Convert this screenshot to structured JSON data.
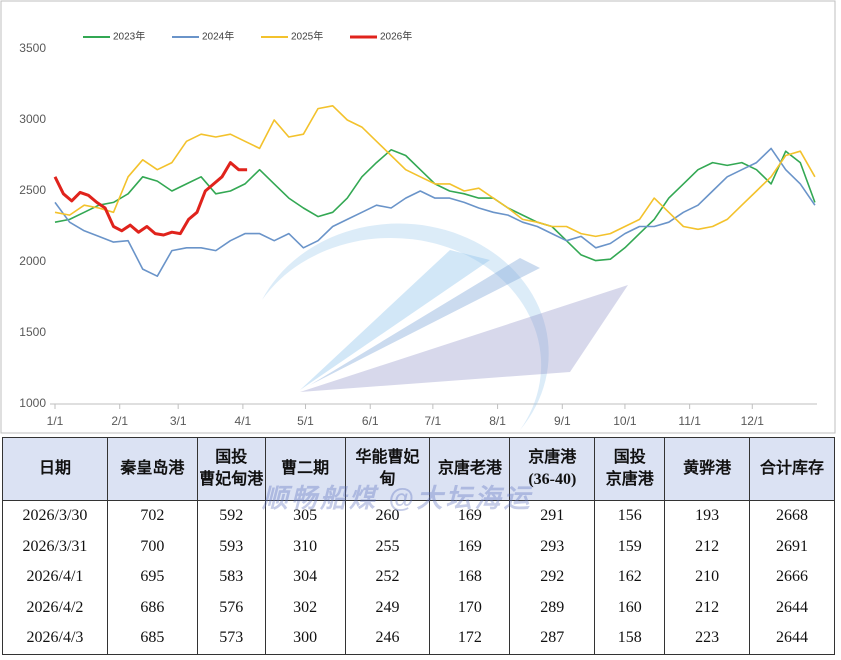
{
  "chart_data": {
    "type": "line",
    "xlim": [
      0,
      365
    ],
    "xticks": [
      {
        "value": 0,
        "label": "1/1"
      },
      {
        "value": 31,
        "label": "2/1"
      },
      {
        "value": 59,
        "label": "3/1"
      },
      {
        "value": 90,
        "label": "4/1"
      },
      {
        "value": 120,
        "label": "5/1"
      },
      {
        "value": 151,
        "label": "6/1"
      },
      {
        "value": 181,
        "label": "7/1"
      },
      {
        "value": 212,
        "label": "8/1"
      },
      {
        "value": 243,
        "label": "9/1"
      },
      {
        "value": 273,
        "label": "10/1"
      },
      {
        "value": 304,
        "label": "11/1"
      },
      {
        "value": 334,
        "label": "12/1"
      }
    ],
    "ylim": [
      1000,
      3500
    ],
    "yticks": [
      1000,
      1500,
      2000,
      2500,
      3000,
      3500
    ],
    "series": [
      {
        "name": "2023年",
        "color": "#33a853",
        "x": [
          0,
          7,
          14,
          21,
          28,
          35,
          42,
          49,
          56,
          63,
          70,
          77,
          84,
          91,
          98,
          105,
          112,
          119,
          126,
          133,
          140,
          147,
          154,
          161,
          168,
          175,
          182,
          189,
          196,
          203,
          210,
          217,
          224,
          231,
          238,
          245,
          252,
          259,
          266,
          273,
          280,
          287,
          294,
          301,
          308,
          315,
          322,
          329,
          336,
          343,
          350,
          357,
          364
        ],
        "values": [
          2280,
          2300,
          2350,
          2400,
          2420,
          2480,
          2600,
          2570,
          2500,
          2550,
          2600,
          2480,
          2500,
          2550,
          2650,
          2550,
          2450,
          2380,
          2320,
          2350,
          2450,
          2600,
          2700,
          2790,
          2750,
          2650,
          2550,
          2500,
          2480,
          2450,
          2450,
          2380,
          2330,
          2280,
          2250,
          2150,
          2050,
          2010,
          2020,
          2100,
          2200,
          2300,
          2450,
          2550,
          2650,
          2700,
          2680,
          2700,
          2650,
          2550,
          2780,
          2700,
          2420
        ]
      },
      {
        "name": "2024年",
        "color": "#6a94c9",
        "x": [
          0,
          7,
          14,
          21,
          28,
          35,
          42,
          49,
          56,
          63,
          70,
          77,
          84,
          91,
          98,
          105,
          112,
          119,
          126,
          133,
          140,
          147,
          154,
          161,
          168,
          175,
          182,
          189,
          196,
          203,
          210,
          217,
          224,
          231,
          238,
          245,
          252,
          259,
          266,
          273,
          280,
          287,
          294,
          301,
          308,
          315,
          322,
          329,
          336,
          343,
          350,
          357,
          364
        ],
        "values": [
          2420,
          2280,
          2220,
          2180,
          2140,
          2150,
          1950,
          1900,
          2080,
          2100,
          2100,
          2080,
          2150,
          2200,
          2200,
          2150,
          2200,
          2100,
          2150,
          2250,
          2300,
          2350,
          2400,
          2380,
          2450,
          2500,
          2450,
          2450,
          2420,
          2380,
          2350,
          2330,
          2280,
          2250,
          2200,
          2150,
          2180,
          2100,
          2130,
          2200,
          2250,
          2250,
          2280,
          2350,
          2400,
          2500,
          2600,
          2650,
          2700,
          2800,
          2650,
          2550,
          2400
        ]
      },
      {
        "name": "2025年",
        "color": "#f3c22c",
        "x": [
          0,
          7,
          14,
          21,
          28,
          35,
          42,
          49,
          56,
          63,
          70,
          77,
          84,
          91,
          98,
          105,
          112,
          119,
          126,
          133,
          140,
          147,
          154,
          161,
          168,
          175,
          182,
          189,
          196,
          203,
          210,
          217,
          224,
          231,
          238,
          245,
          252,
          259,
          266,
          273,
          280,
          287,
          294,
          301,
          308,
          315,
          322,
          329,
          336,
          343,
          350,
          357,
          364
        ],
        "values": [
          2350,
          2330,
          2400,
          2380,
          2350,
          2600,
          2720,
          2650,
          2700,
          2850,
          2900,
          2880,
          2900,
          2850,
          2800,
          3000,
          2880,
          2900,
          3080,
          3100,
          3000,
          2950,
          2850,
          2750,
          2650,
          2600,
          2550,
          2550,
          2500,
          2520,
          2450,
          2380,
          2300,
          2280,
          2250,
          2250,
          2200,
          2180,
          2200,
          2250,
          2300,
          2450,
          2350,
          2250,
          2230,
          2250,
          2300,
          2400,
          2500,
          2600,
          2750,
          2780,
          2600
        ]
      },
      {
        "name": "2026年",
        "color": "#e0231c",
        "x": [
          0,
          4,
          8,
          12,
          16,
          20,
          24,
          28,
          32,
          36,
          40,
          44,
          48,
          52,
          56,
          60,
          64,
          68,
          72,
          76,
          80,
          84,
          88,
          92
        ],
        "values": [
          2600,
          2480,
          2430,
          2490,
          2470,
          2420,
          2380,
          2250,
          2220,
          2260,
          2210,
          2250,
          2200,
          2190,
          2210,
          2200,
          2300,
          2350,
          2500,
          2550,
          2600,
          2700,
          2650,
          2650
        ]
      }
    ]
  },
  "table": {
    "header": [
      [
        "日期"
      ],
      [
        "秦皇岛港"
      ],
      [
        "国投",
        "曹妃甸港"
      ],
      [
        "曹二期"
      ],
      [
        "华能曹妃",
        "甸"
      ],
      [
        "京唐老港"
      ],
      [
        "京唐港",
        "(36-40)"
      ],
      [
        "国投",
        "京唐港"
      ],
      [
        "黄骅港"
      ],
      [
        "合计库存"
      ]
    ],
    "rows": [
      [
        "2026/3/30",
        702,
        592,
        305,
        260,
        169,
        291,
        156,
        193,
        2668
      ],
      [
        "2026/3/31",
        700,
        593,
        310,
        255,
        169,
        293,
        159,
        212,
        2691
      ],
      [
        "2026/4/1",
        695,
        583,
        304,
        252,
        168,
        292,
        162,
        210,
        2666
      ],
      [
        "2026/4/2",
        686,
        576,
        302,
        249,
        170,
        289,
        160,
        212,
        2644
      ],
      [
        "2026/4/3",
        685,
        573,
        300,
        246,
        172,
        287,
        158,
        223,
        2644
      ]
    ]
  },
  "watermark": "顺畅船煤 @大坛海运"
}
